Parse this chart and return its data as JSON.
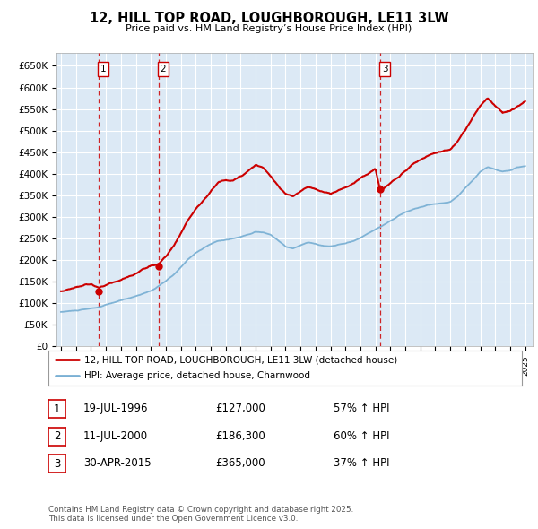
{
  "title": "12, HILL TOP ROAD, LOUGHBOROUGH, LE11 3LW",
  "subtitle": "Price paid vs. HM Land Registry’s House Price Index (HPI)",
  "ylim": [
    0,
    680000
  ],
  "yticks": [
    0,
    50000,
    100000,
    150000,
    200000,
    250000,
    300000,
    350000,
    400000,
    450000,
    500000,
    550000,
    600000,
    650000
  ],
  "ytick_labels": [
    "£0",
    "£50K",
    "£100K",
    "£150K",
    "£200K",
    "£250K",
    "£300K",
    "£350K",
    "£400K",
    "£450K",
    "£500K",
    "£550K",
    "£600K",
    "£650K"
  ],
  "xlim_start": 1993.7,
  "xlim_end": 2025.5,
  "transactions": [
    {
      "date": 1996.54,
      "price": 127000,
      "label": "1"
    },
    {
      "date": 2000.53,
      "price": 186300,
      "label": "2"
    },
    {
      "date": 2015.33,
      "price": 365000,
      "label": "3"
    }
  ],
  "transaction_color": "#cc0000",
  "hpi_color": "#7ab0d4",
  "legend_line1": "12, HILL TOP ROAD, LOUGHBOROUGH, LE11 3LW (detached house)",
  "legend_line2": "HPI: Average price, detached house, Charnwood",
  "table_entries": [
    {
      "label": "1",
      "date": "19-JUL-1996",
      "price": "£127,000",
      "hpi": "57% ↑ HPI"
    },
    {
      "label": "2",
      "date": "11-JUL-2000",
      "price": "£186,300",
      "hpi": "60% ↑ HPI"
    },
    {
      "label": "3",
      "date": "30-APR-2015",
      "price": "£365,000",
      "hpi": "37% ↑ HPI"
    }
  ],
  "footnote": "Contains HM Land Registry data © Crown copyright and database right 2025.\nThis data is licensed under the Open Government Licence v3.0.",
  "bg_color": "#ffffff",
  "plot_bg_color": "#dce9f5",
  "grid_color": "#ffffff",
  "vline_color": "#cc0000",
  "hpi_raw": [
    [
      1994.0,
      80000
    ],
    [
      1994.5,
      82000
    ],
    [
      1995.0,
      83000
    ],
    [
      1995.5,
      85000
    ],
    [
      1996.0,
      87000
    ],
    [
      1996.5,
      90000
    ],
    [
      1997.0,
      95000
    ],
    [
      1997.5,
      100000
    ],
    [
      1998.0,
      105000
    ],
    [
      1998.5,
      110000
    ],
    [
      1999.0,
      115000
    ],
    [
      1999.5,
      122000
    ],
    [
      2000.0,
      128000
    ],
    [
      2000.5,
      138000
    ],
    [
      2001.0,
      150000
    ],
    [
      2001.5,
      163000
    ],
    [
      2002.0,
      180000
    ],
    [
      2002.5,
      200000
    ],
    [
      2003.0,
      215000
    ],
    [
      2003.5,
      225000
    ],
    [
      2004.0,
      235000
    ],
    [
      2004.5,
      242000
    ],
    [
      2005.0,
      245000
    ],
    [
      2005.5,
      248000
    ],
    [
      2006.0,
      252000
    ],
    [
      2006.5,
      258000
    ],
    [
      2007.0,
      265000
    ],
    [
      2007.5,
      263000
    ],
    [
      2008.0,
      258000
    ],
    [
      2008.5,
      245000
    ],
    [
      2009.0,
      230000
    ],
    [
      2009.5,
      225000
    ],
    [
      2010.0,
      232000
    ],
    [
      2010.5,
      238000
    ],
    [
      2011.0,
      235000
    ],
    [
      2011.5,
      230000
    ],
    [
      2012.0,
      228000
    ],
    [
      2012.5,
      232000
    ],
    [
      2013.0,
      235000
    ],
    [
      2013.5,
      240000
    ],
    [
      2014.0,
      248000
    ],
    [
      2014.5,
      258000
    ],
    [
      2015.0,
      268000
    ],
    [
      2015.5,
      278000
    ],
    [
      2016.0,
      288000
    ],
    [
      2016.5,
      298000
    ],
    [
      2017.0,
      308000
    ],
    [
      2017.5,
      315000
    ],
    [
      2018.0,
      320000
    ],
    [
      2018.5,
      325000
    ],
    [
      2019.0,
      328000
    ],
    [
      2019.5,
      330000
    ],
    [
      2020.0,
      332000
    ],
    [
      2020.5,
      345000
    ],
    [
      2021.0,
      365000
    ],
    [
      2021.5,
      385000
    ],
    [
      2022.0,
      405000
    ],
    [
      2022.5,
      415000
    ],
    [
      2023.0,
      410000
    ],
    [
      2023.5,
      405000
    ],
    [
      2024.0,
      408000
    ],
    [
      2024.5,
      415000
    ],
    [
      2025.0,
      418000
    ]
  ],
  "red_raw": [
    [
      1994.0,
      128000
    ],
    [
      1994.5,
      130000
    ],
    [
      1995.0,
      132000
    ],
    [
      1995.5,
      135000
    ],
    [
      1996.0,
      138000
    ],
    [
      1996.54,
      127000
    ],
    [
      1997.0,
      135000
    ],
    [
      1997.5,
      142000
    ],
    [
      1998.0,
      150000
    ],
    [
      1998.5,
      157000
    ],
    [
      1999.0,
      163000
    ],
    [
      1999.5,
      172000
    ],
    [
      2000.0,
      182000
    ],
    [
      2000.53,
      186300
    ],
    [
      2001.0,
      205000
    ],
    [
      2001.5,
      228000
    ],
    [
      2002.0,
      255000
    ],
    [
      2002.5,
      290000
    ],
    [
      2003.0,
      315000
    ],
    [
      2003.5,
      335000
    ],
    [
      2004.0,
      358000
    ],
    [
      2004.5,
      378000
    ],
    [
      2005.0,
      385000
    ],
    [
      2005.5,
      388000
    ],
    [
      2006.0,
      398000
    ],
    [
      2006.5,
      410000
    ],
    [
      2007.0,
      425000
    ],
    [
      2007.5,
      418000
    ],
    [
      2008.0,
      400000
    ],
    [
      2008.5,
      378000
    ],
    [
      2009.0,
      360000
    ],
    [
      2009.5,
      355000
    ],
    [
      2010.0,
      368000
    ],
    [
      2010.5,
      378000
    ],
    [
      2011.0,
      372000
    ],
    [
      2011.5,
      365000
    ],
    [
      2012.0,
      360000
    ],
    [
      2012.5,
      368000
    ],
    [
      2013.0,
      375000
    ],
    [
      2013.5,
      385000
    ],
    [
      2014.0,
      398000
    ],
    [
      2014.5,
      408000
    ],
    [
      2015.0,
      418000
    ],
    [
      2015.33,
      365000
    ],
    [
      2015.5,
      370000
    ],
    [
      2016.0,
      385000
    ],
    [
      2016.5,
      400000
    ],
    [
      2017.0,
      418000
    ],
    [
      2017.5,
      432000
    ],
    [
      2018.0,
      442000
    ],
    [
      2018.5,
      450000
    ],
    [
      2019.0,
      455000
    ],
    [
      2019.5,
      458000
    ],
    [
      2020.0,
      462000
    ],
    [
      2020.5,
      480000
    ],
    [
      2021.0,
      508000
    ],
    [
      2021.5,
      535000
    ],
    [
      2022.0,
      562000
    ],
    [
      2022.5,
      578000
    ],
    [
      2023.0,
      558000
    ],
    [
      2023.5,
      542000
    ],
    [
      2024.0,
      548000
    ],
    [
      2024.5,
      558000
    ],
    [
      2025.0,
      568000
    ]
  ]
}
